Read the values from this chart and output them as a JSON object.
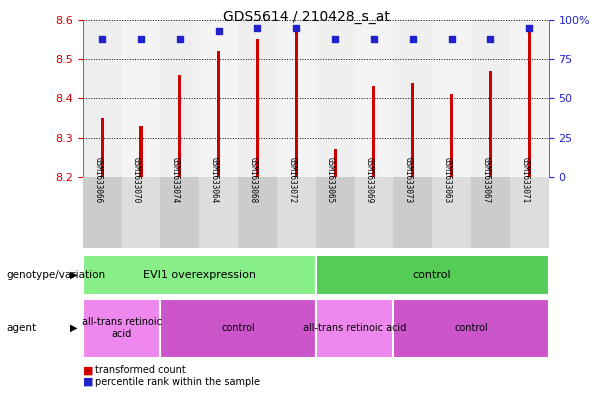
{
  "title": "GDS5614 / 210428_s_at",
  "samples": [
    "GSM1633066",
    "GSM1633070",
    "GSM1633074",
    "GSM1633064",
    "GSM1633068",
    "GSM1633072",
    "GSM1633065",
    "GSM1633069",
    "GSM1633073",
    "GSM1633063",
    "GSM1633067",
    "GSM1633071"
  ],
  "bar_values": [
    8.35,
    8.33,
    8.46,
    8.52,
    8.55,
    8.57,
    8.27,
    8.43,
    8.44,
    8.41,
    8.47,
    8.57
  ],
  "percentile_values": [
    88,
    88,
    88,
    93,
    95,
    95,
    88,
    88,
    88,
    88,
    88,
    95
  ],
  "bar_bottom": 8.2,
  "ylim_left": [
    8.2,
    8.6
  ],
  "ylim_right": [
    0,
    100
  ],
  "yticks_left": [
    8.2,
    8.3,
    8.4,
    8.5,
    8.6
  ],
  "yticks_right": [
    0,
    25,
    50,
    75,
    100
  ],
  "ytick_right_labels": [
    "0",
    "25",
    "50",
    "75",
    "100%"
  ],
  "bar_color": "#cc0000",
  "dot_color": "#2222cc",
  "background_color": "#ffffff",
  "genotype_groups": [
    {
      "label": "EVI1 overexpression",
      "start": 0,
      "end": 6,
      "color": "#88ee88"
    },
    {
      "label": "control",
      "start": 6,
      "end": 12,
      "color": "#55cc55"
    }
  ],
  "agent_groups": [
    {
      "label": "all-trans retinoic\nacid",
      "start": 0,
      "end": 2,
      "color": "#ee88ee"
    },
    {
      "label": "control",
      "start": 2,
      "end": 6,
      "color": "#cc55cc"
    },
    {
      "label": "all-trans retinoic acid",
      "start": 6,
      "end": 8,
      "color": "#ee88ee"
    },
    {
      "label": "control",
      "start": 8,
      "end": 12,
      "color": "#cc55cc"
    }
  ],
  "legend_bar_label": "transformed count",
  "legend_dot_label": "percentile rank within the sample",
  "row_label_genotype": "genotype/variation",
  "row_label_agent": "agent",
  "left_axis_color": "#cc0000",
  "right_axis_color": "#2222cc",
  "col_colors": [
    "#cccccc",
    "#dddddd"
  ]
}
